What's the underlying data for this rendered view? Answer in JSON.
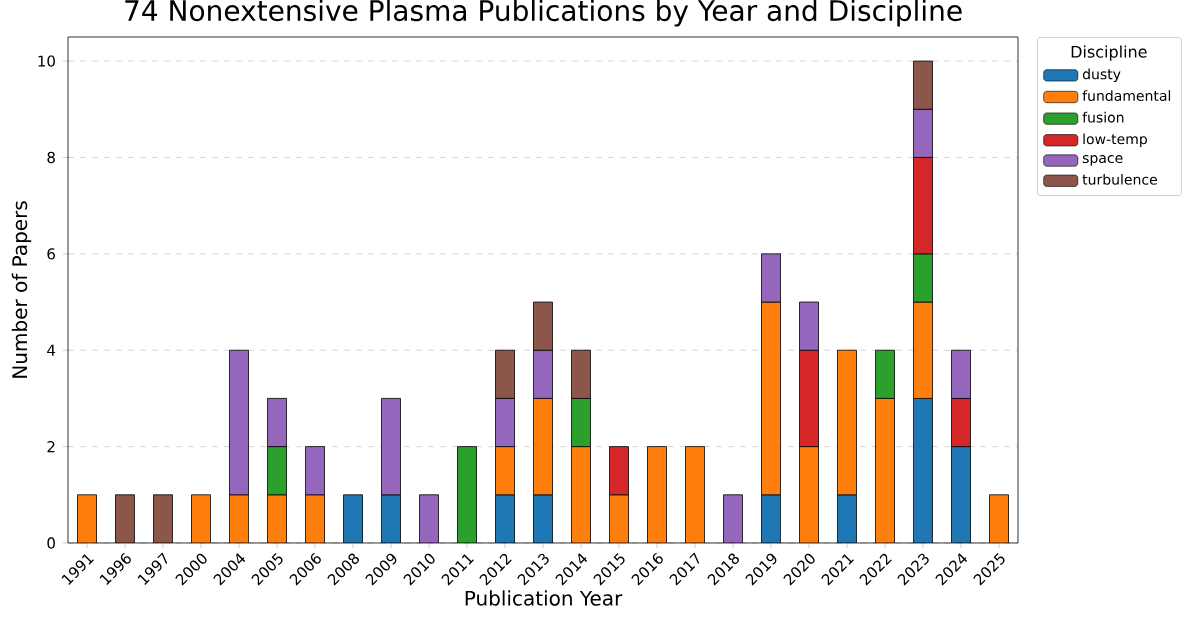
{
  "chart_data": {
    "type": "bar",
    "stacked": true,
    "title": "74 Nonextensive Plasma Publications by Year and Discipline",
    "xlabel": "Publication Year",
    "ylabel": "Number of Papers",
    "legend_title": "Discipline",
    "legend": "top right",
    "grid": "y",
    "categories": [
      "1991",
      "1996",
      "1997",
      "2000",
      "2004",
      "2005",
      "2006",
      "2008",
      "2009",
      "2010",
      "2011",
      "2012",
      "2013",
      "2014",
      "2015",
      "2016",
      "2017",
      "2018",
      "2019",
      "2020",
      "2021",
      "2022",
      "2023",
      "2024",
      "2025"
    ],
    "ylim": [
      0,
      10.5
    ],
    "yticks": [
      0,
      2,
      4,
      6,
      8,
      10
    ],
    "series": [
      {
        "name": "dusty",
        "color": "#1f77b4",
        "values": [
          0,
          0,
          0,
          0,
          0,
          0,
          0,
          1,
          1,
          0,
          0,
          1,
          1,
          0,
          0,
          0,
          0,
          0,
          1,
          0,
          1,
          0,
          3,
          2,
          0
        ]
      },
      {
        "name": "fundamental",
        "color": "#ff7f0e",
        "values": [
          1,
          0,
          0,
          1,
          1,
          1,
          1,
          0,
          0,
          0,
          0,
          1,
          2,
          2,
          1,
          2,
          2,
          0,
          4,
          2,
          3,
          3,
          2,
          0,
          1
        ]
      },
      {
        "name": "fusion",
        "color": "#2ca02c",
        "values": [
          0,
          0,
          0,
          0,
          0,
          1,
          0,
          0,
          0,
          0,
          2,
          0,
          0,
          1,
          0,
          0,
          0,
          0,
          0,
          0,
          0,
          1,
          1,
          0,
          0
        ]
      },
      {
        "name": "low-temp",
        "color": "#d62728",
        "values": [
          0,
          0,
          0,
          0,
          0,
          0,
          0,
          0,
          0,
          0,
          0,
          0,
          0,
          0,
          1,
          0,
          0,
          0,
          0,
          2,
          0,
          0,
          2,
          1,
          0
        ]
      },
      {
        "name": "space",
        "color": "#9467bd",
        "values": [
          0,
          0,
          0,
          0,
          3,
          1,
          1,
          0,
          2,
          1,
          0,
          1,
          1,
          0,
          0,
          0,
          0,
          1,
          1,
          1,
          0,
          0,
          1,
          1,
          0
        ]
      },
      {
        "name": "turbulence",
        "color": "#8c564b",
        "values": [
          0,
          1,
          1,
          0,
          0,
          0,
          0,
          0,
          0,
          0,
          0,
          1,
          1,
          1,
          0,
          0,
          0,
          0,
          0,
          0,
          0,
          0,
          1,
          0,
          0
        ]
      }
    ]
  }
}
